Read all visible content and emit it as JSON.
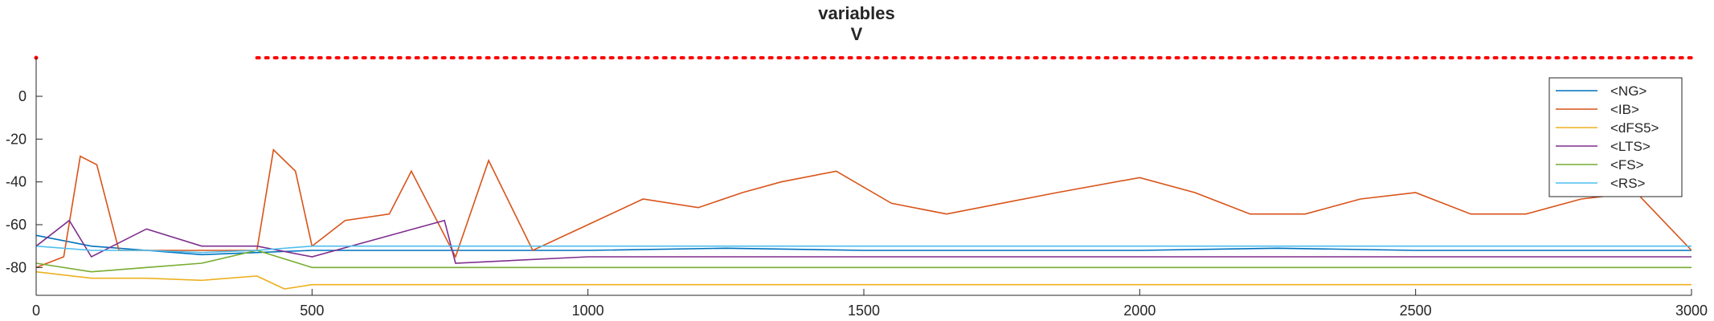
{
  "chart_data": {
    "type": "line",
    "title": "variables",
    "subtitle": "V",
    "xlabel": "",
    "ylabel": "",
    "xlim": [
      0,
      3000
    ],
    "ylim": [
      -93,
      18
    ],
    "x_ticks": [
      0,
      500,
      1000,
      1500,
      2000,
      2500,
      3000
    ],
    "x_tick_labels": [
      "0",
      "500",
      "1000",
      "1500",
      "2000",
      "2500",
      "3000"
    ],
    "y_ticks": [
      0,
      -20,
      -40,
      -60,
      -80
    ],
    "y_tick_labels": [
      "0",
      "-20",
      "-40",
      "-60",
      "-80"
    ],
    "grid": false,
    "legend_position": "top-right",
    "series": [
      {
        "name": "<NG>",
        "color": "#0072BD",
        "x": [
          0,
          100,
          200,
          300,
          400,
          500,
          750,
          1000,
          1250,
          1500,
          1750,
          2000,
          2250,
          2500,
          2750,
          3000
        ],
        "values": [
          -65,
          -70,
          -72,
          -74,
          -73,
          -72,
          -72,
          -72,
          -71,
          -72,
          -72,
          -72,
          -71,
          -72,
          -72,
          -72
        ]
      },
      {
        "name": "<IB>",
        "color": "#D95319",
        "x": [
          0,
          50,
          80,
          110,
          150,
          300,
          400,
          430,
          470,
          500,
          560,
          640,
          680,
          760,
          820,
          900,
          1000,
          1100,
          1200,
          1280,
          1350,
          1450,
          1550,
          1650,
          1750,
          1850,
          2000,
          2100,
          2200,
          2300,
          2400,
          2500,
          2600,
          2700,
          2800,
          2900,
          3000
        ],
        "values": [
          -80,
          -75,
          -28,
          -32,
          -72,
          -72,
          -72,
          -25,
          -35,
          -70,
          -58,
          -55,
          -35,
          -75,
          -30,
          -72,
          -60,
          -48,
          -52,
          -45,
          -40,
          -35,
          -50,
          -55,
          -50,
          -45,
          -38,
          -45,
          -55,
          -55,
          -48,
          -45,
          -55,
          -55,
          -48,
          -45,
          -72
        ]
      },
      {
        "name": "<dFS5>",
        "color": "#EDB120",
        "x": [
          0,
          100,
          200,
          300,
          400,
          450,
          500,
          750,
          1000,
          1250,
          1500,
          1750,
          2000,
          2250,
          2500,
          2750,
          3000
        ],
        "values": [
          -82,
          -85,
          -85,
          -86,
          -84,
          -90,
          -88,
          -88,
          -88,
          -88,
          -88,
          -88,
          -88,
          -88,
          -88,
          -88,
          -88
        ]
      },
      {
        "name": "<LTS>",
        "color": "#7E2F8E",
        "x": [
          0,
          60,
          100,
          200,
          300,
          400,
          500,
          740,
          760,
          1000,
          1500,
          2000,
          2500,
          3000
        ],
        "values": [
          -70,
          -58,
          -75,
          -62,
          -70,
          -70,
          -75,
          -58,
          -78,
          -75,
          -75,
          -75,
          -75,
          -75
        ]
      },
      {
        "name": "<FS>",
        "color": "#77AC30",
        "x": [
          0,
          100,
          200,
          300,
          400,
          500,
          750,
          1000,
          1250,
          1350,
          1500,
          1750,
          1880,
          2000,
          2250,
          2330,
          2500,
          2750,
          3000
        ],
        "values": [
          -78,
          -82,
          -80,
          -78,
          -72,
          -80,
          -80,
          -80,
          -80,
          -80,
          -80,
          -80,
          -80,
          -80,
          -80,
          -80,
          -80,
          -80,
          -80
        ]
      },
      {
        "name": "<RS>",
        "color": "#4DBEEE",
        "x": [
          0,
          100,
          200,
          300,
          400,
          500,
          750,
          1000,
          1250,
          1500,
          1750,
          2000,
          2250,
          2500,
          2750,
          3000
        ],
        "values": [
          -70,
          -72,
          -72,
          -73,
          -72,
          -70,
          -70,
          -70,
          -70,
          -70,
          -70,
          -70,
          -70,
          -70,
          -70,
          -70
        ]
      }
    ],
    "reference_markers": {
      "color": "#FF0000",
      "style": "dotted",
      "y": 18,
      "x_start": 400,
      "x_end": 3000
    }
  }
}
